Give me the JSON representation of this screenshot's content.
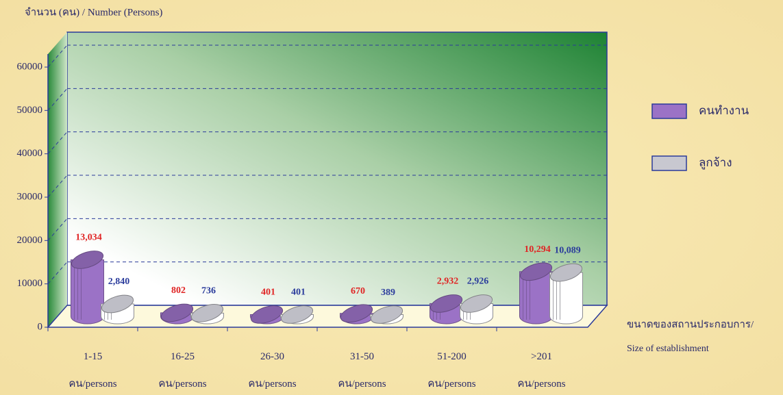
{
  "chart_data": {
    "type": "bar3d",
    "y_label": "จำนวน (คน) / Number (Persons)",
    "x_label": [
      "ขนาดของสถานประกอบการ/",
      "Size of establishment"
    ],
    "categories": [
      "1-15 คน/persons",
      "16-25 คน/persons",
      "26-30 คน/persons",
      "31-50 คน/persons",
      "51-200 คน/persons",
      ">201 คน/persons"
    ],
    "series": [
      {
        "name": "คนทำงาน",
        "color": "#9b72c6",
        "label_color": "#e02424",
        "values": [
          13034,
          802,
          401,
          670,
          2932,
          10294
        ],
        "value_labels": [
          "13,034",
          "802",
          "401",
          "670",
          "2,932",
          "10,294"
        ]
      },
      {
        "name": "ลูกจ้าง",
        "color": "#c8c8d0",
        "label_color": "#2b3c9c",
        "values": [
          2840,
          736,
          401,
          389,
          2926,
          10089
        ],
        "value_labels": [
          "2,840",
          "736",
          "401",
          "389",
          "2,926",
          "10,089"
        ]
      }
    ],
    "ylim": [
      0,
      63000
    ],
    "yticks": [
      0,
      10000,
      20000,
      30000,
      40000,
      50000,
      60000
    ],
    "grid": true
  }
}
